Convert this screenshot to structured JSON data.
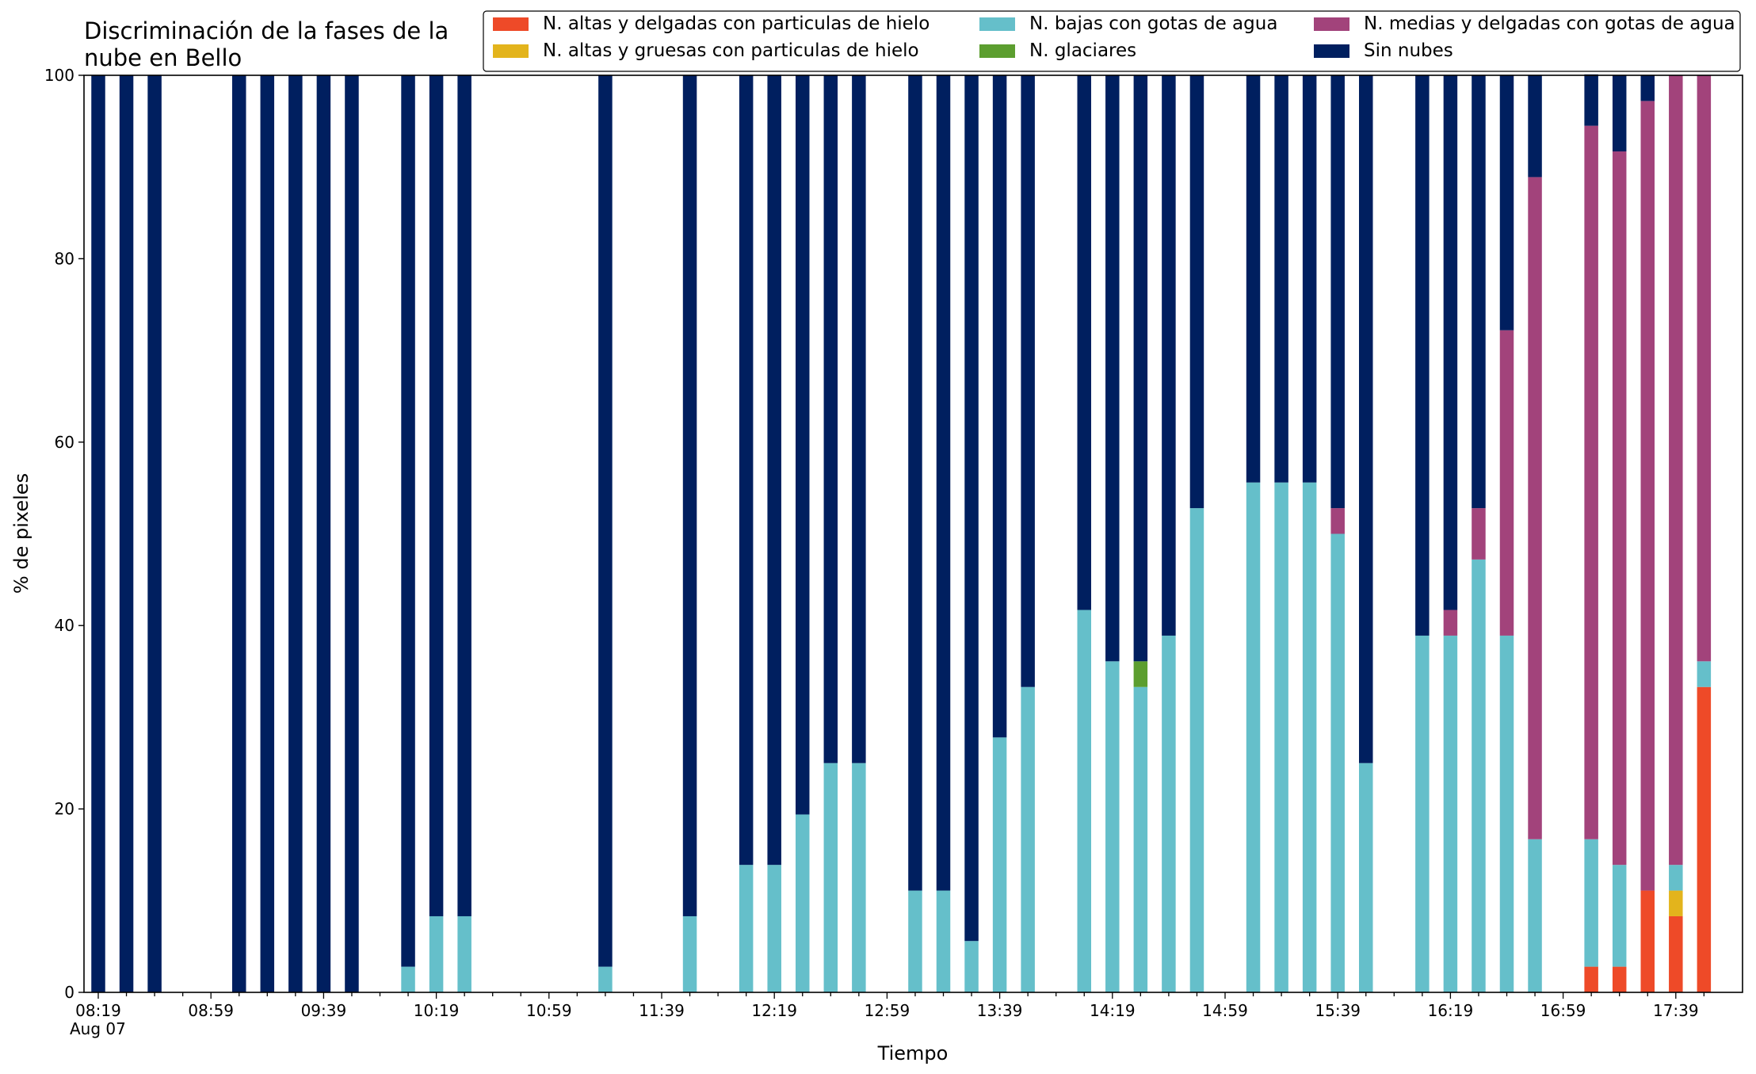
{
  "chart_data": {
    "type": "bar",
    "stacked": true,
    "title_lines": [
      "Discriminación de la fases de la",
      "nube en Bello"
    ],
    "xlabel": "Tiempo",
    "ylabel": "% de pixeles",
    "ylim": [
      0,
      100
    ],
    "yticks": [
      0,
      20,
      40,
      60,
      80,
      100
    ],
    "x_tick_labels": [
      "08:19",
      "08:59",
      "09:39",
      "10:19",
      "10:59",
      "11:39",
      "12:19",
      "12:59",
      "13:39",
      "14:19",
      "14:59",
      "15:39",
      "16:19",
      "16:59",
      "17:39"
    ],
    "x_date_label": "Aug 07",
    "grid": false,
    "legend_position": "top-right",
    "legend_ncol": 3,
    "categories": [
      "08:19",
      "08:29",
      "08:39",
      "08:49",
      "08:59",
      "09:09",
      "09:19",
      "09:29",
      "09:39",
      "09:49",
      "09:59",
      "10:09",
      "10:19",
      "10:29",
      "10:39",
      "10:49",
      "10:59",
      "11:09",
      "11:19",
      "11:29",
      "11:39",
      "11:49",
      "11:59",
      "12:09",
      "12:19",
      "12:29",
      "12:39",
      "12:49",
      "12:59",
      "13:09",
      "13:19",
      "13:29",
      "13:39",
      "13:49",
      "13:59",
      "14:09",
      "14:19",
      "14:29",
      "14:39",
      "14:49",
      "14:59",
      "15:09",
      "15:19",
      "15:29",
      "15:39",
      "15:49",
      "15:59",
      "16:09",
      "16:19",
      "16:29",
      "16:39",
      "16:49",
      "16:59",
      "17:09",
      "17:19",
      "17:29",
      "17:39",
      "17:49"
    ],
    "series": [
      {
        "name": "N. altas y delgadas con particulas de hielo",
        "color": "#ee4a28",
        "values": [
          0,
          0,
          0,
          0,
          0,
          0,
          0,
          0,
          0,
          0,
          0,
          0,
          0,
          0,
          0,
          0,
          0,
          0,
          0,
          0,
          0,
          0,
          0,
          0,
          0,
          0,
          0,
          0,
          0,
          0,
          0,
          0,
          0,
          0,
          0,
          0,
          0,
          0,
          0,
          0,
          0,
          0,
          0,
          0,
          0,
          0,
          0,
          0,
          0,
          0,
          0,
          0,
          0,
          2.8,
          2.8,
          11.1,
          8.3,
          33.3
        ]
      },
      {
        "name": "N. altas y gruesas con particulas de hielo",
        "color": "#e3b41c",
        "values": [
          0,
          0,
          0,
          0,
          0,
          0,
          0,
          0,
          0,
          0,
          0,
          0,
          0,
          0,
          0,
          0,
          0,
          0,
          0,
          0,
          0,
          0,
          0,
          0,
          0,
          0,
          0,
          0,
          0,
          0,
          0,
          0,
          0,
          0,
          0,
          0,
          0,
          0,
          0,
          0,
          0,
          0,
          0,
          0,
          0,
          0,
          0,
          0,
          0,
          0,
          0,
          0,
          0,
          0,
          0,
          0,
          2.8,
          0
        ]
      },
      {
        "name": "N. bajas con gotas de agua",
        "color": "#65bfca",
        "values": [
          0,
          0,
          0,
          0,
          0,
          0,
          0,
          0,
          0,
          0,
          0,
          2.8,
          8.3,
          8.3,
          0,
          0,
          0,
          0,
          2.8,
          0,
          0,
          8.3,
          0,
          13.9,
          13.9,
          19.4,
          25.0,
          25.0,
          0,
          11.1,
          11.1,
          5.6,
          27.8,
          33.3,
          0,
          41.7,
          36.1,
          33.3,
          38.9,
          52.8,
          0,
          55.6,
          55.6,
          55.6,
          50.0,
          25.0,
          0,
          38.9,
          38.9,
          47.2,
          38.9,
          16.7,
          0,
          13.9,
          11.1,
          0,
          2.8,
          2.8
        ]
      },
      {
        "name": "N. glaciares",
        "color": "#5c9e2f",
        "values": [
          0,
          0,
          0,
          0,
          0,
          0,
          0,
          0,
          0,
          0,
          0,
          0,
          0,
          0,
          0,
          0,
          0,
          0,
          0,
          0,
          0,
          0,
          0,
          0,
          0,
          0,
          0,
          0,
          0,
          0,
          0,
          0,
          0,
          0,
          0,
          0,
          0,
          2.8,
          0,
          0,
          0,
          0,
          0,
          0,
          0,
          0,
          0,
          0,
          0,
          0,
          0,
          0,
          0,
          0,
          0,
          0,
          0,
          0
        ]
      },
      {
        "name": "N. medias y delgadas con gotas de agua",
        "color": "#a2437b",
        "values": [
          0,
          0,
          0,
          0,
          0,
          0,
          0,
          0,
          0,
          0,
          0,
          0,
          0,
          0,
          0,
          0,
          0,
          0,
          0,
          0,
          0,
          0,
          0,
          0,
          0,
          0,
          0,
          0,
          0,
          0,
          0,
          0,
          0,
          0,
          0,
          0,
          0,
          0,
          0,
          0,
          0,
          0,
          0,
          0,
          2.8,
          0,
          0,
          0,
          2.8,
          5.6,
          33.3,
          72.2,
          0,
          77.8,
          77.8,
          86.1,
          86.1,
          63.9
        ]
      },
      {
        "name": "Sin nubes",
        "color": "#001f5f",
        "values": [
          100,
          100,
          100,
          0,
          0,
          100,
          100,
          100,
          100,
          100,
          0,
          97.2,
          91.7,
          91.7,
          0,
          0,
          0,
          0,
          97.2,
          0,
          0,
          91.7,
          0,
          86.1,
          86.1,
          80.6,
          75.0,
          75.0,
          0,
          88.9,
          88.9,
          94.4,
          72.2,
          66.7,
          0,
          58.3,
          63.9,
          63.9,
          61.1,
          47.2,
          0,
          44.4,
          44.4,
          44.4,
          47.2,
          75.0,
          0,
          61.1,
          58.3,
          47.2,
          27.8,
          11.1,
          0,
          5.6,
          8.3,
          2.8,
          0,
          0
        ]
      }
    ]
  }
}
